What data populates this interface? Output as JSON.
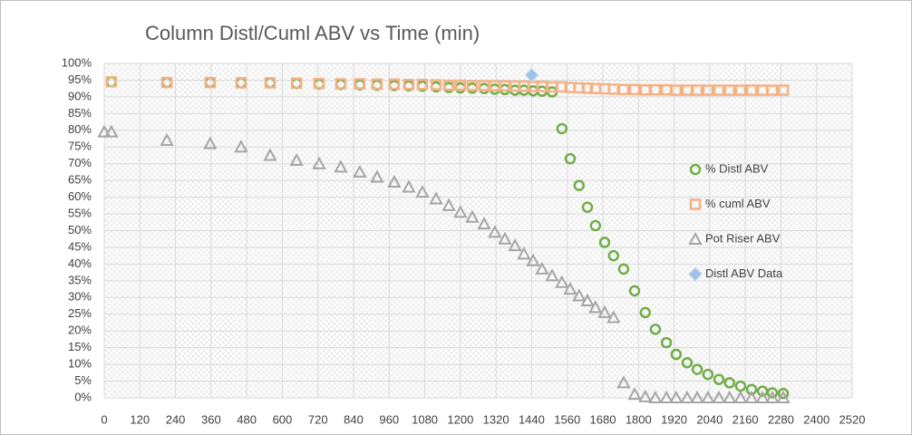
{
  "chart_data": {
    "type": "scatter",
    "title": "Column  Distl/Cuml ABV vs Time (min)",
    "xlim": [
      0,
      2520
    ],
    "ylim": [
      0,
      100
    ],
    "xticks": [
      0,
      120,
      240,
      360,
      480,
      600,
      720,
      840,
      960,
      1080,
      1200,
      1320,
      1440,
      1560,
      1680,
      1800,
      1920,
      2040,
      2160,
      2280,
      2400,
      2520
    ],
    "yticks": [
      {
        "value": 0,
        "label": "0%"
      },
      {
        "value": 5,
        "label": "5%"
      },
      {
        "value": 10,
        "label": "10%"
      },
      {
        "value": 15,
        "label": "15%"
      },
      {
        "value": 20,
        "label": "20%"
      },
      {
        "value": 25,
        "label": "25%"
      },
      {
        "value": 30,
        "label": "30%"
      },
      {
        "value": 35,
        "label": "35%"
      },
      {
        "value": 40,
        "label": "40%"
      },
      {
        "value": 45,
        "label": "45%"
      },
      {
        "value": 50,
        "label": "50%"
      },
      {
        "value": 55,
        "label": "55%"
      },
      {
        "value": 60,
        "label": "60%"
      },
      {
        "value": 65,
        "label": "65%"
      },
      {
        "value": 70,
        "label": "70%"
      },
      {
        "value": 75,
        "label": "75%"
      },
      {
        "value": 80,
        "label": "80%"
      },
      {
        "value": 85,
        "label": "85%"
      },
      {
        "value": 90,
        "label": "90%"
      },
      {
        "value": 95,
        "label": "95%"
      },
      {
        "value": 100,
        "label": "100%"
      }
    ],
    "grid": true,
    "legend": "right",
    "series": [
      {
        "name": "% Distl ABV",
        "color": "#70ad47",
        "marker": "circle",
        "x": [
          24,
          211,
          357,
          461,
          559,
          648,
          724,
          797,
          861,
          919,
          977,
          1026,
          1072,
          1118,
          1161,
          1200,
          1240,
          1280,
          1316,
          1350,
          1384,
          1414,
          1445,
          1475,
          1509,
          1542,
          1570,
          1600,
          1628,
          1655,
          1686,
          1716,
          1750,
          1787,
          1823,
          1857,
          1894,
          1927,
          1964,
          1998,
          2034,
          2071,
          2107,
          2144,
          2181,
          2218,
          2251,
          2288
        ],
        "values": [
          94.5,
          94.3,
          94.3,
          94.2,
          94.2,
          94,
          93.8,
          93.7,
          93.6,
          93.5,
          93.4,
          93.3,
          93.2,
          93,
          92.8,
          92.7,
          92.6,
          92.5,
          92.3,
          92.2,
          92,
          92,
          91.8,
          91.7,
          91.5,
          80.5,
          71.5,
          63.5,
          57,
          51.5,
          46.5,
          42.5,
          38.5,
          32,
          25.5,
          20.5,
          16.5,
          13,
          10.5,
          8.5,
          7,
          5.5,
          4.5,
          3.5,
          2.5,
          2,
          1.5,
          1.3
        ]
      },
      {
        "name": "% cuml ABV",
        "color": "#f4b183",
        "marker": "square",
        "x": [
          24,
          211,
          357,
          461,
          559,
          648,
          724,
          797,
          861,
          919,
          977,
          1026,
          1072,
          1118,
          1161,
          1200,
          1240,
          1280,
          1316,
          1350,
          1384,
          1414,
          1445,
          1475,
          1509,
          1542,
          1570,
          1600,
          1628,
          1655,
          1686,
          1716,
          1750,
          1787,
          1823,
          1857,
          1894,
          1927,
          1964,
          1998,
          2034,
          2071,
          2107,
          2144,
          2181,
          2218,
          2251,
          2288
        ],
        "values": [
          94.5,
          94.3,
          94.3,
          94.2,
          94.2,
          94.1,
          94,
          93.9,
          93.9,
          93.8,
          93.8,
          93.7,
          93.7,
          93.6,
          93.5,
          93.5,
          93.4,
          93.4,
          93.3,
          93.3,
          93.2,
          93.2,
          93.1,
          93.1,
          93,
          93,
          92.8,
          92.7,
          92.6,
          92.5,
          92.4,
          92.3,
          92.2,
          92.2,
          92.1,
          92.1,
          92.1,
          92,
          92,
          92,
          92,
          92,
          92,
          92,
          92,
          92,
          92,
          92
        ]
      },
      {
        "name": "Pot Riser ABV",
        "color": "#a5a5a5",
        "marker": "triangle",
        "x": [
          0,
          24,
          211,
          357,
          461,
          559,
          648,
          724,
          797,
          861,
          919,
          977,
          1026,
          1072,
          1118,
          1161,
          1200,
          1240,
          1280,
          1316,
          1350,
          1384,
          1414,
          1445,
          1475,
          1509,
          1542,
          1570,
          1600,
          1628,
          1655,
          1686,
          1716,
          1750,
          1787,
          1823,
          1857,
          1894,
          1927,
          1964,
          1998,
          2034,
          2071,
          2107,
          2144,
          2181,
          2218,
          2251,
          2288
        ],
        "values": [
          79.5,
          79.5,
          77,
          76,
          75,
          72.5,
          71,
          70,
          69,
          67.5,
          66,
          64.5,
          63,
          61.5,
          59.5,
          57.5,
          55.5,
          54,
          52,
          49.5,
          47.5,
          45.5,
          43,
          41,
          38.5,
          36.5,
          34.5,
          32.5,
          30.5,
          29,
          27,
          25.5,
          24,
          4.5,
          1,
          0.3,
          0,
          0,
          0,
          0,
          0,
          0,
          0,
          0,
          0,
          0,
          0,
          0,
          0
        ]
      },
      {
        "name": "Distl ABV Data",
        "color": "#9dc3e6",
        "marker": "diamond",
        "x": [
          1440
        ],
        "values": [
          96.5
        ]
      }
    ]
  }
}
